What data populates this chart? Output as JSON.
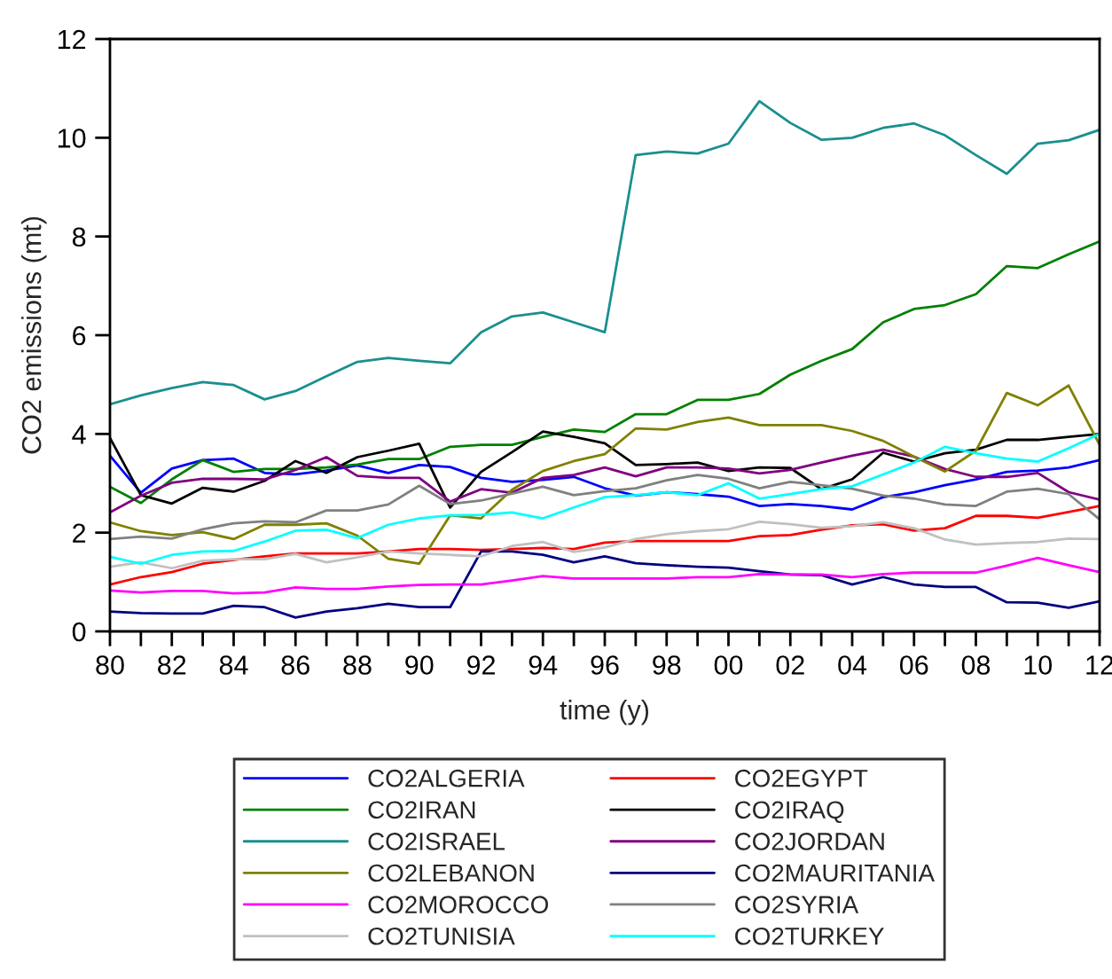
{
  "chart_data": {
    "type": "line",
    "xlabel": "time (y)",
    "ylabel": "CO2 emissions (mt)",
    "x": [
      1980,
      1981,
      1982,
      1983,
      1984,
      1985,
      1986,
      1987,
      1988,
      1989,
      1990,
      1991,
      1992,
      1993,
      1994,
      1995,
      1996,
      1997,
      1998,
      1999,
      2000,
      2001,
      2002,
      2003,
      2004,
      2005,
      2006,
      2007,
      2008,
      2009,
      2010,
      2011,
      2012
    ],
    "xlim": [
      1980,
      2012
    ],
    "xticks": [
      {
        "value": 1980,
        "label": "80"
      },
      {
        "value": 1981,
        "label": null
      },
      {
        "value": 1982,
        "label": "82"
      },
      {
        "value": 1983,
        "label": null
      },
      {
        "value": 1984,
        "label": "84"
      },
      {
        "value": 1985,
        "label": null
      },
      {
        "value": 1986,
        "label": "86"
      },
      {
        "value": 1987,
        "label": null
      },
      {
        "value": 1988,
        "label": "88"
      },
      {
        "value": 1989,
        "label": null
      },
      {
        "value": 1990,
        "label": "90"
      },
      {
        "value": 1991,
        "label": null
      },
      {
        "value": 1992,
        "label": "92"
      },
      {
        "value": 1993,
        "label": null
      },
      {
        "value": 1994,
        "label": "94"
      },
      {
        "value": 1995,
        "label": null
      },
      {
        "value": 1996,
        "label": "96"
      },
      {
        "value": 1997,
        "label": null
      },
      {
        "value": 1998,
        "label": "98"
      },
      {
        "value": 1999,
        "label": null
      },
      {
        "value": 2000,
        "label": "00"
      },
      {
        "value": 2001,
        "label": null
      },
      {
        "value": 2002,
        "label": "02"
      },
      {
        "value": 2003,
        "label": null
      },
      {
        "value": 2004,
        "label": "04"
      },
      {
        "value": 2005,
        "label": null
      },
      {
        "value": 2006,
        "label": "06"
      },
      {
        "value": 2007,
        "label": null
      },
      {
        "value": 2008,
        "label": "08"
      },
      {
        "value": 2009,
        "label": null
      },
      {
        "value": 2010,
        "label": "10"
      },
      {
        "value": 2011,
        "label": null
      },
      {
        "value": 2012,
        "label": "12"
      }
    ],
    "ylim": [
      0,
      12
    ],
    "yticks": [
      0,
      2,
      4,
      6,
      8,
      10,
      12
    ],
    "grid": false,
    "legend": "bottom",
    "marker": "none",
    "line_style": "solid",
    "series": [
      {
        "name": "CO2ALGERIA",
        "color": "#0000ff",
        "values": [
          3.56,
          2.81,
          3.3,
          3.47,
          3.5,
          3.21,
          3.18,
          3.26,
          3.36,
          3.21,
          3.37,
          3.33,
          3.11,
          3.03,
          3.07,
          3.13,
          2.9,
          2.75,
          2.82,
          2.78,
          2.73,
          2.54,
          2.58,
          2.54,
          2.47,
          2.72,
          2.82,
          2.96,
          3.08,
          3.23,
          3.26,
          3.32,
          3.47
        ]
      },
      {
        "name": "CO2EGYPT",
        "color": "#ff0000",
        "values": [
          0.95,
          1.1,
          1.2,
          1.37,
          1.45,
          1.52,
          1.58,
          1.58,
          1.58,
          1.62,
          1.67,
          1.67,
          1.65,
          1.67,
          1.69,
          1.67,
          1.8,
          1.83,
          1.83,
          1.83,
          1.83,
          1.93,
          1.95,
          2.06,
          2.15,
          2.17,
          2.04,
          2.09,
          2.34,
          2.34,
          2.3,
          2.42,
          2.54
        ]
      },
      {
        "name": "CO2IRAN",
        "color": "#008000",
        "values": [
          2.93,
          2.6,
          3.08,
          3.47,
          3.23,
          3.29,
          3.29,
          3.32,
          3.38,
          3.49,
          3.49,
          3.74,
          3.78,
          3.78,
          3.94,
          4.09,
          4.04,
          4.4,
          4.4,
          4.69,
          4.69,
          4.81,
          5.2,
          5.48,
          5.72,
          6.26,
          6.53,
          6.61,
          6.83,
          7.4,
          7.36,
          7.64,
          7.9
        ]
      },
      {
        "name": "CO2IRAQ",
        "color": "#000000",
        "values": [
          3.92,
          2.76,
          2.59,
          2.91,
          2.83,
          3.05,
          3.45,
          3.21,
          3.53,
          3.66,
          3.8,
          2.51,
          3.23,
          3.63,
          4.05,
          3.94,
          3.81,
          3.37,
          3.39,
          3.42,
          3.25,
          3.32,
          3.31,
          2.88,
          3.08,
          3.62,
          3.44,
          3.61,
          3.68,
          3.88,
          3.88,
          3.94,
          4.0
        ]
      },
      {
        "name": "CO2ISRAEL",
        "color": "#1a8f8f",
        "values": [
          4.6,
          4.78,
          4.93,
          5.05,
          4.99,
          4.7,
          4.87,
          5.17,
          5.46,
          5.54,
          5.48,
          5.43,
          6.06,
          6.38,
          6.46,
          6.26,
          6.06,
          9.65,
          9.72,
          9.68,
          9.88,
          10.74,
          10.3,
          9.96,
          10.0,
          10.2,
          10.29,
          10.05,
          9.65,
          9.27,
          9.88,
          9.95,
          10.16
        ]
      },
      {
        "name": "CO2JORDAN",
        "color": "#800080",
        "values": [
          2.41,
          2.75,
          3.01,
          3.09,
          3.09,
          3.08,
          3.27,
          3.53,
          3.15,
          3.11,
          3.11,
          2.63,
          2.88,
          2.81,
          3.11,
          3.17,
          3.32,
          3.14,
          3.32,
          3.32,
          3.3,
          3.2,
          3.27,
          3.42,
          3.56,
          3.68,
          3.54,
          3.29,
          3.13,
          3.13,
          3.21,
          2.82,
          2.67
        ]
      },
      {
        "name": "CO2LEBANON",
        "color": "#808000",
        "values": [
          2.21,
          2.03,
          1.95,
          2.01,
          1.87,
          2.16,
          2.16,
          2.19,
          1.94,
          1.47,
          1.37,
          2.35,
          2.29,
          2.87,
          3.25,
          3.45,
          3.59,
          4.11,
          4.09,
          4.24,
          4.33,
          4.18,
          4.18,
          4.18,
          4.06,
          3.86,
          3.54,
          3.24,
          3.66,
          4.83,
          4.58,
          4.98,
          3.78
        ]
      },
      {
        "name": "CO2MAURITANIA",
        "color": "#000080",
        "values": [
          0.4,
          0.37,
          0.36,
          0.36,
          0.52,
          0.49,
          0.28,
          0.4,
          0.47,
          0.56,
          0.49,
          0.49,
          1.62,
          1.62,
          1.55,
          1.4,
          1.52,
          1.38,
          1.34,
          1.31,
          1.29,
          1.22,
          1.15,
          1.14,
          0.95,
          1.1,
          0.95,
          0.9,
          0.9,
          0.59,
          0.58,
          0.48,
          0.61
        ]
      },
      {
        "name": "CO2MOROCCO",
        "color": "#ff00ff",
        "values": [
          0.83,
          0.79,
          0.82,
          0.82,
          0.77,
          0.79,
          0.89,
          0.86,
          0.86,
          0.91,
          0.94,
          0.95,
          0.95,
          1.03,
          1.12,
          1.07,
          1.07,
          1.07,
          1.07,
          1.1,
          1.1,
          1.16,
          1.15,
          1.15,
          1.1,
          1.16,
          1.19,
          1.19,
          1.19,
          1.33,
          1.49,
          1.34,
          1.2
        ]
      },
      {
        "name": "CO2SYRIA",
        "color": "#808080",
        "values": [
          1.87,
          1.92,
          1.88,
          2.07,
          2.19,
          2.23,
          2.21,
          2.45,
          2.45,
          2.57,
          2.95,
          2.58,
          2.65,
          2.79,
          2.93,
          2.76,
          2.84,
          2.9,
          3.06,
          3.17,
          3.09,
          2.9,
          3.03,
          2.96,
          2.89,
          2.75,
          2.69,
          2.57,
          2.54,
          2.83,
          2.89,
          2.78,
          2.27
        ]
      },
      {
        "name": "CO2TUNISIA",
        "color": "#c0c0c0",
        "values": [
          1.31,
          1.4,
          1.28,
          1.43,
          1.46,
          1.46,
          1.57,
          1.4,
          1.5,
          1.62,
          1.58,
          1.55,
          1.52,
          1.73,
          1.81,
          1.61,
          1.7,
          1.87,
          1.97,
          2.03,
          2.07,
          2.22,
          2.17,
          2.1,
          2.13,
          2.21,
          2.09,
          1.86,
          1.76,
          1.79,
          1.81,
          1.88,
          1.87
        ]
      },
      {
        "name": "CO2TURKEY",
        "color": "#00ffff",
        "values": [
          1.51,
          1.37,
          1.55,
          1.62,
          1.63,
          1.82,
          2.04,
          2.06,
          1.89,
          2.16,
          2.29,
          2.35,
          2.36,
          2.41,
          2.29,
          2.51,
          2.72,
          2.76,
          2.82,
          2.76,
          3.0,
          2.69,
          2.78,
          2.88,
          2.94,
          3.18,
          3.42,
          3.74,
          3.61,
          3.5,
          3.44,
          3.71,
          4.0
        ]
      }
    ]
  }
}
